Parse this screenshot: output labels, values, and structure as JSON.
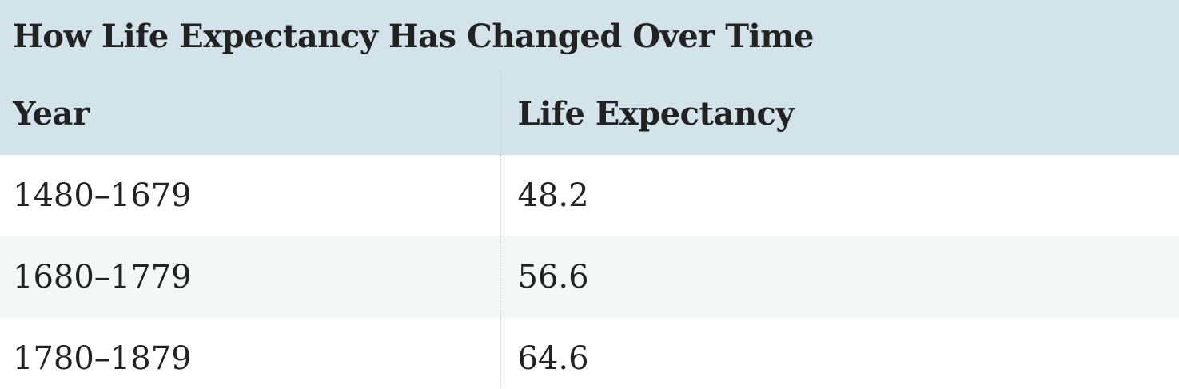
{
  "table": {
    "caption": "How Life Expectancy Has Changed Over Time",
    "headers": [
      "Year",
      "Life Expectancy"
    ],
    "rows": [
      [
        "1480–1679",
        "48.2"
      ],
      [
        "1680–1779",
        "56.6"
      ],
      [
        "1780–1879",
        "64.6"
      ]
    ]
  },
  "colors": {
    "header_bg": "#d3e3ea",
    "alt_row_bg": "#f5f7f6",
    "text": "#222222"
  }
}
